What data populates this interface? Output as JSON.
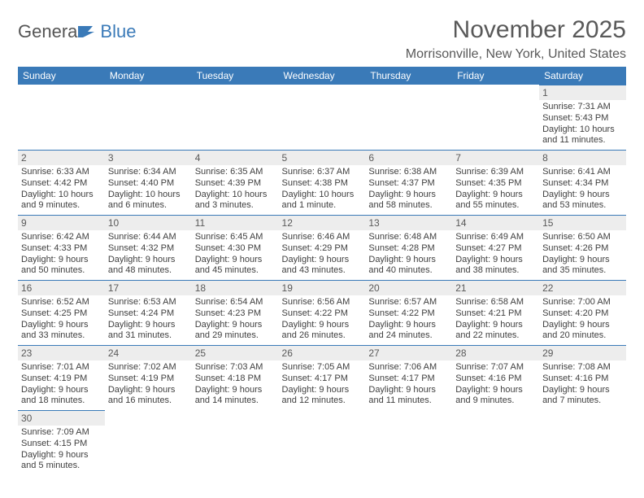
{
  "logo": {
    "text_left": "Genera",
    "text_right": "Blue"
  },
  "title": {
    "month": "November 2025",
    "location": "Morrisonville, New York, United States"
  },
  "headers": [
    "Sunday",
    "Monday",
    "Tuesday",
    "Wednesday",
    "Thursday",
    "Friday",
    "Saturday"
  ],
  "colors": {
    "accent": "#3a7ab8",
    "grey": "#ededed"
  },
  "weeks": [
    [
      null,
      null,
      null,
      null,
      null,
      null,
      {
        "n": "1",
        "sr": "Sunrise: 7:31 AM",
        "ss": "Sunset: 5:43 PM",
        "dl": "Daylight: 10 hours and 11 minutes."
      }
    ],
    [
      {
        "n": "2",
        "sr": "Sunrise: 6:33 AM",
        "ss": "Sunset: 4:42 PM",
        "dl": "Daylight: 10 hours and 9 minutes."
      },
      {
        "n": "3",
        "sr": "Sunrise: 6:34 AM",
        "ss": "Sunset: 4:40 PM",
        "dl": "Daylight: 10 hours and 6 minutes."
      },
      {
        "n": "4",
        "sr": "Sunrise: 6:35 AM",
        "ss": "Sunset: 4:39 PM",
        "dl": "Daylight: 10 hours and 3 minutes."
      },
      {
        "n": "5",
        "sr": "Sunrise: 6:37 AM",
        "ss": "Sunset: 4:38 PM",
        "dl": "Daylight: 10 hours and 1 minute."
      },
      {
        "n": "6",
        "sr": "Sunrise: 6:38 AM",
        "ss": "Sunset: 4:37 PM",
        "dl": "Daylight: 9 hours and 58 minutes."
      },
      {
        "n": "7",
        "sr": "Sunrise: 6:39 AM",
        "ss": "Sunset: 4:35 PM",
        "dl": "Daylight: 9 hours and 55 minutes."
      },
      {
        "n": "8",
        "sr": "Sunrise: 6:41 AM",
        "ss": "Sunset: 4:34 PM",
        "dl": "Daylight: 9 hours and 53 minutes."
      }
    ],
    [
      {
        "n": "9",
        "sr": "Sunrise: 6:42 AM",
        "ss": "Sunset: 4:33 PM",
        "dl": "Daylight: 9 hours and 50 minutes."
      },
      {
        "n": "10",
        "sr": "Sunrise: 6:44 AM",
        "ss": "Sunset: 4:32 PM",
        "dl": "Daylight: 9 hours and 48 minutes."
      },
      {
        "n": "11",
        "sr": "Sunrise: 6:45 AM",
        "ss": "Sunset: 4:30 PM",
        "dl": "Daylight: 9 hours and 45 minutes."
      },
      {
        "n": "12",
        "sr": "Sunrise: 6:46 AM",
        "ss": "Sunset: 4:29 PM",
        "dl": "Daylight: 9 hours and 43 minutes."
      },
      {
        "n": "13",
        "sr": "Sunrise: 6:48 AM",
        "ss": "Sunset: 4:28 PM",
        "dl": "Daylight: 9 hours and 40 minutes."
      },
      {
        "n": "14",
        "sr": "Sunrise: 6:49 AM",
        "ss": "Sunset: 4:27 PM",
        "dl": "Daylight: 9 hours and 38 minutes."
      },
      {
        "n": "15",
        "sr": "Sunrise: 6:50 AM",
        "ss": "Sunset: 4:26 PM",
        "dl": "Daylight: 9 hours and 35 minutes."
      }
    ],
    [
      {
        "n": "16",
        "sr": "Sunrise: 6:52 AM",
        "ss": "Sunset: 4:25 PM",
        "dl": "Daylight: 9 hours and 33 minutes."
      },
      {
        "n": "17",
        "sr": "Sunrise: 6:53 AM",
        "ss": "Sunset: 4:24 PM",
        "dl": "Daylight: 9 hours and 31 minutes."
      },
      {
        "n": "18",
        "sr": "Sunrise: 6:54 AM",
        "ss": "Sunset: 4:23 PM",
        "dl": "Daylight: 9 hours and 29 minutes."
      },
      {
        "n": "19",
        "sr": "Sunrise: 6:56 AM",
        "ss": "Sunset: 4:22 PM",
        "dl": "Daylight: 9 hours and 26 minutes."
      },
      {
        "n": "20",
        "sr": "Sunrise: 6:57 AM",
        "ss": "Sunset: 4:22 PM",
        "dl": "Daylight: 9 hours and 24 minutes."
      },
      {
        "n": "21",
        "sr": "Sunrise: 6:58 AM",
        "ss": "Sunset: 4:21 PM",
        "dl": "Daylight: 9 hours and 22 minutes."
      },
      {
        "n": "22",
        "sr": "Sunrise: 7:00 AM",
        "ss": "Sunset: 4:20 PM",
        "dl": "Daylight: 9 hours and 20 minutes."
      }
    ],
    [
      {
        "n": "23",
        "sr": "Sunrise: 7:01 AM",
        "ss": "Sunset: 4:19 PM",
        "dl": "Daylight: 9 hours and 18 minutes."
      },
      {
        "n": "24",
        "sr": "Sunrise: 7:02 AM",
        "ss": "Sunset: 4:19 PM",
        "dl": "Daylight: 9 hours and 16 minutes."
      },
      {
        "n": "25",
        "sr": "Sunrise: 7:03 AM",
        "ss": "Sunset: 4:18 PM",
        "dl": "Daylight: 9 hours and 14 minutes."
      },
      {
        "n": "26",
        "sr": "Sunrise: 7:05 AM",
        "ss": "Sunset: 4:17 PM",
        "dl": "Daylight: 9 hours and 12 minutes."
      },
      {
        "n": "27",
        "sr": "Sunrise: 7:06 AM",
        "ss": "Sunset: 4:17 PM",
        "dl": "Daylight: 9 hours and 11 minutes."
      },
      {
        "n": "28",
        "sr": "Sunrise: 7:07 AM",
        "ss": "Sunset: 4:16 PM",
        "dl": "Daylight: 9 hours and 9 minutes."
      },
      {
        "n": "29",
        "sr": "Sunrise: 7:08 AM",
        "ss": "Sunset: 4:16 PM",
        "dl": "Daylight: 9 hours and 7 minutes."
      }
    ],
    [
      {
        "n": "30",
        "sr": "Sunrise: 7:09 AM",
        "ss": "Sunset: 4:15 PM",
        "dl": "Daylight: 9 hours and 5 minutes."
      },
      null,
      null,
      null,
      null,
      null,
      null
    ]
  ]
}
